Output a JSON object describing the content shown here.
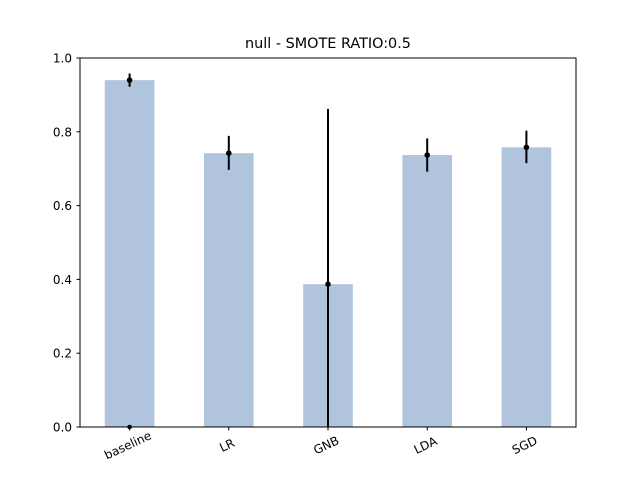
{
  "chart_data": {
    "type": "bar",
    "title": "null - SMOTE RATIO:0.5",
    "xlabel": "",
    "ylabel": "",
    "categories": [
      "baseline",
      "LR",
      "GNB",
      "LDA",
      "SGD"
    ],
    "values": [
      0.94,
      0.742,
      0.387,
      0.737,
      0.758
    ],
    "error_low": [
      0.922,
      0.697,
      0.0,
      0.692,
      0.715
    ],
    "error_high": [
      0.958,
      0.789,
      0.862,
      0.782,
      0.803
    ],
    "extra_points": [
      {
        "category": "baseline",
        "value": 0.0
      }
    ],
    "ylim": [
      0,
      1.0
    ],
    "yticks": [
      "0.0",
      "0.2",
      "0.4",
      "0.6",
      "0.8",
      "1.0"
    ],
    "ytick_values": [
      0,
      0.2,
      0.4,
      0.6,
      0.8,
      1.0
    ],
    "bar_color": "#b0c4de",
    "error_color": "#000000",
    "grid": false,
    "legend": "none"
  }
}
